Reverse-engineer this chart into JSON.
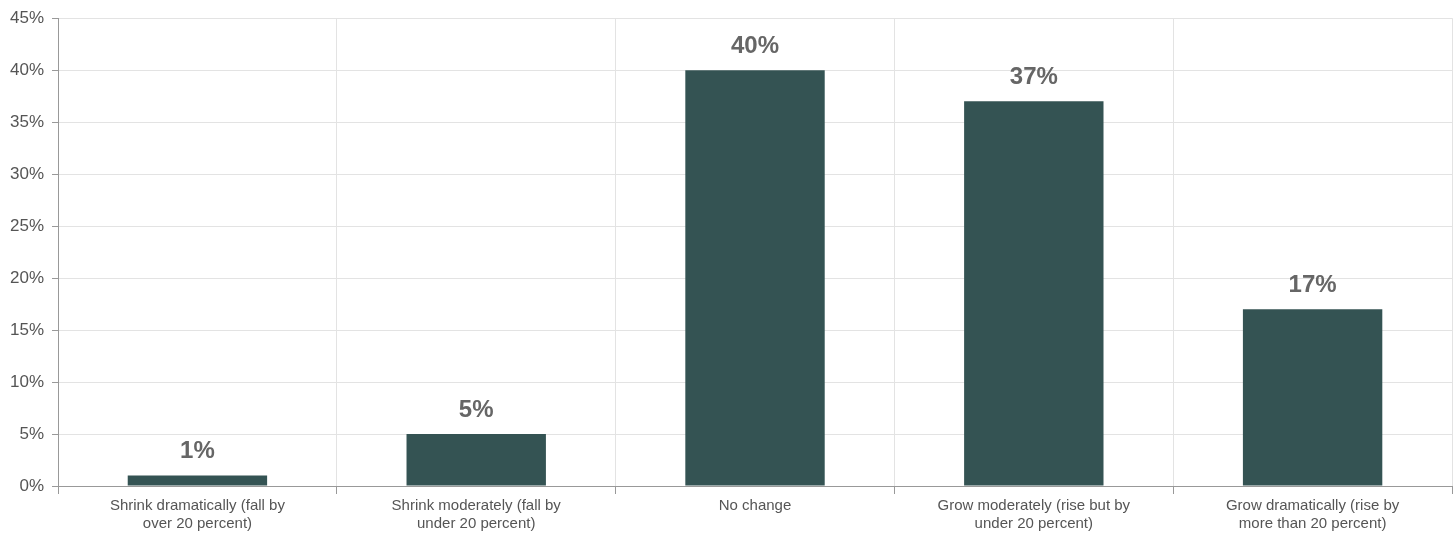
{
  "chart_data": {
    "type": "bar",
    "categories": [
      "Shrink dramatically (fall by over 20 percent)",
      "Shrink moderately (fall by under 20 percent)",
      "No change",
      "Grow moderately (rise but by under 20 percent)",
      "Grow dramatically (rise by more than 20 percent)"
    ],
    "values": [
      1,
      5,
      40,
      37,
      17
    ],
    "color": "#345353",
    "ylim": [
      0,
      45
    ],
    "yticks": [
      {
        "value": 0,
        "label": "0%"
      },
      {
        "value": 5,
        "label": "5%"
      },
      {
        "value": 10,
        "label": "10%"
      },
      {
        "value": 15,
        "label": "15%"
      },
      {
        "value": 20,
        "label": "20%"
      },
      {
        "value": 25,
        "label": "25%"
      },
      {
        "value": 30,
        "label": "30%"
      },
      {
        "value": 35,
        "label": "35%"
      },
      {
        "value": 40,
        "label": "40%"
      },
      {
        "value": 45,
        "label": "45%"
      }
    ],
    "value_labels": [
      "1%",
      "5%",
      "40%",
      "37%",
      "17%"
    ],
    "grid": true
  }
}
